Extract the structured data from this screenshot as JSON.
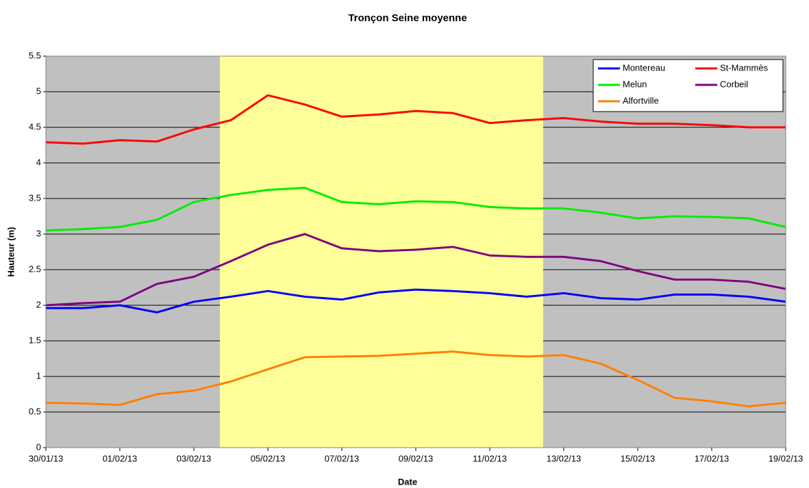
{
  "chart_data": {
    "type": "line",
    "title": "Tronçon Seine moyenne",
    "xlabel": "Date",
    "ylabel": "Hauteur (m)",
    "x": [
      "30/01/13",
      "31/01/13",
      "01/02/13",
      "02/02/13",
      "03/02/13",
      "04/02/13",
      "05/02/13",
      "06/02/13",
      "07/02/13",
      "08/02/13",
      "09/02/13",
      "10/02/13",
      "11/02/13",
      "12/02/13",
      "13/02/13",
      "14/02/13",
      "15/02/13",
      "16/02/13",
      "17/02/13",
      "18/02/13",
      "19/02/13"
    ],
    "xticks": [
      "30/01/13",
      "01/02/13",
      "03/02/13",
      "05/02/13",
      "07/02/13",
      "09/02/13",
      "11/02/13",
      "13/02/13",
      "15/02/13",
      "17/02/13",
      "19/02/13"
    ],
    "ylim": [
      0,
      5.5
    ],
    "yticks": [
      0,
      0.5,
      1,
      1.5,
      2,
      2.5,
      3,
      3.5,
      4,
      4.5,
      5,
      5.5
    ],
    "grid": true,
    "legend": "upper right",
    "series": [
      {
        "name": "Montereau",
        "color": "#0000ff",
        "values": [
          1.96,
          1.96,
          2.0,
          1.9,
          2.05,
          2.12,
          2.2,
          2.12,
          2.08,
          2.18,
          2.22,
          2.2,
          2.17,
          2.12,
          2.17,
          2.1,
          2.08,
          2.15,
          2.15,
          2.12,
          2.05
        ]
      },
      {
        "name": "St-Mammès",
        "color": "#ff0000",
        "values": [
          4.29,
          4.27,
          4.32,
          4.3,
          4.47,
          4.6,
          4.95,
          4.82,
          4.65,
          4.68,
          4.73,
          4.7,
          4.56,
          4.6,
          4.63,
          4.58,
          4.55,
          4.55,
          4.53,
          4.5,
          4.5
        ]
      },
      {
        "name": "Melun",
        "color": "#00ee00",
        "values": [
          3.05,
          3.07,
          3.1,
          3.2,
          3.45,
          3.55,
          3.62,
          3.65,
          3.45,
          3.42,
          3.46,
          3.45,
          3.38,
          3.36,
          3.36,
          3.3,
          3.22,
          3.25,
          3.24,
          3.22,
          3.1
        ]
      },
      {
        "name": "Corbeil",
        "color": "#800080",
        "values": [
          2.0,
          2.03,
          2.05,
          2.3,
          2.4,
          2.62,
          2.85,
          3.0,
          2.8,
          2.76,
          2.78,
          2.82,
          2.7,
          2.68,
          2.68,
          2.62,
          2.48,
          2.36,
          2.36,
          2.33,
          2.23
        ]
      },
      {
        "name": "Alfortville",
        "color": "#ff7f00",
        "values": [
          0.63,
          0.62,
          0.6,
          0.75,
          0.8,
          0.93,
          1.1,
          1.27,
          1.28,
          1.29,
          1.32,
          1.35,
          1.3,
          1.28,
          1.3,
          1.18,
          0.95,
          0.7,
          0.65,
          0.58,
          0.63
        ]
      }
    ]
  }
}
